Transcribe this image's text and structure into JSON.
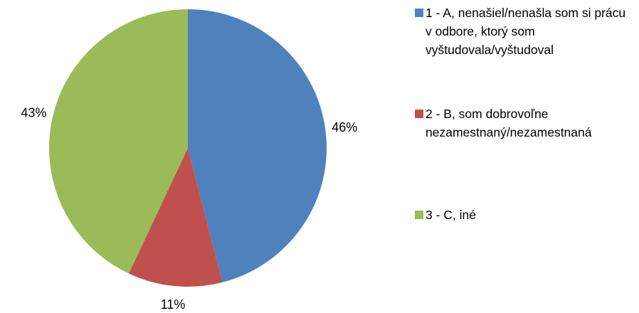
{
  "chart_data": {
    "type": "pie",
    "categories": [
      "1 - A, nenašiel/nenašla som si prácu v odbore, ktorý som vyštudovala/vyštudoval",
      "2 - B, som dobrovoľne nezamestnaný/nezamestnaná",
      "3 - C, iné"
    ],
    "values": [
      46,
      11,
      43
    ],
    "value_labels": [
      "46%",
      "11%",
      "43%"
    ],
    "colors": [
      "#4f81bd",
      "#c0504d",
      "#9bbb59"
    ],
    "legend": "right"
  }
}
